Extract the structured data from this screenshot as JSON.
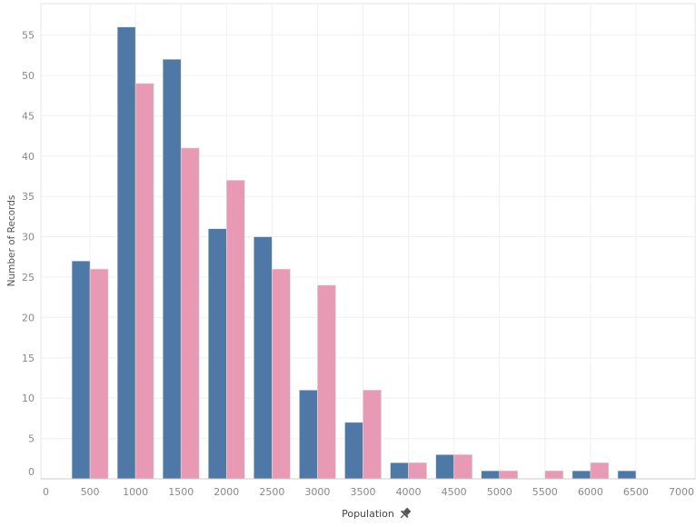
{
  "chart_data": {
    "type": "bar",
    "title": "",
    "xlabel": "Population",
    "ylabel": "Number of Records",
    "x_ticks": [
      0,
      500,
      1000,
      1500,
      2000,
      2500,
      3000,
      3500,
      4000,
      4500,
      5000,
      5500,
      6000,
      6500,
      7000
    ],
    "y_ticks": [
      0,
      5,
      10,
      15,
      20,
      25,
      30,
      35,
      40,
      45,
      50,
      55
    ],
    "xlim": [
      0,
      7000
    ],
    "ylim": [
      0,
      59
    ],
    "grid": true,
    "categories": [
      500,
      1000,
      1500,
      2000,
      2500,
      3000,
      3500,
      4000,
      4500,
      5000,
      5500,
      6000,
      6500
    ],
    "series": [
      {
        "color": "#4e79a7",
        "values": [
          27,
          56,
          52,
          31,
          30,
          11,
          7,
          2,
          3,
          1,
          0,
          1,
          1
        ]
      },
      {
        "color": "#e899b4",
        "values": [
          26,
          49,
          41,
          37,
          26,
          24,
          11,
          2,
          3,
          1,
          1,
          2,
          0
        ]
      }
    ],
    "xlabel_icon": "pin-icon"
  }
}
